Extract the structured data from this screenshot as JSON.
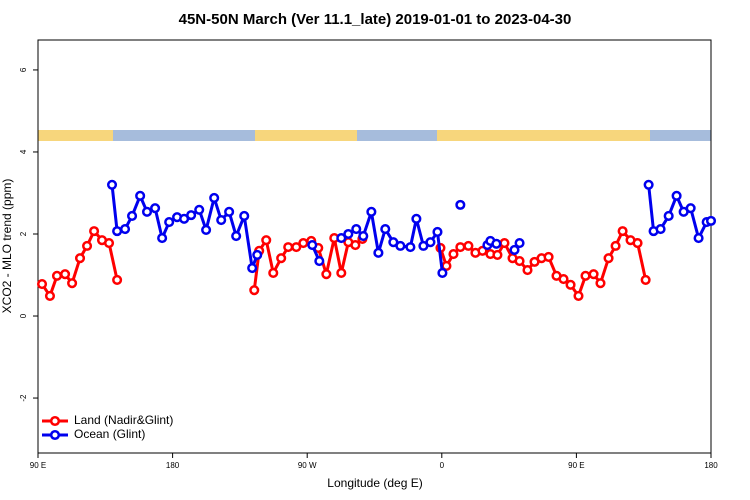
{
  "chart_data": {
    "type": "line",
    "title": "45N-50N March (Ver 11.1_late)   2019-01-01 to 2023-04-30",
    "x_label": "Longitude (deg E)",
    "y_label": "XCO2 - MLO trend (ppm)",
    "xlim": [
      90,
      540
    ],
    "ylim": [
      -3.34,
      6.73
    ],
    "xticks": [
      {
        "value": 90,
        "label": "90 E"
      },
      180,
      {
        "value": 270,
        "label": "90 W"
      },
      {
        "value": 360,
        "label": "0"
      },
      {
        "value": 450,
        "label": "90 E"
      },
      {
        "value": 540,
        "label": "180"
      }
    ],
    "yticks": [
      -2,
      0,
      2,
      4,
      6
    ],
    "legend": "bottomleft",
    "series": [
      {
        "name": "Land (Nadir&Glint)",
        "color": "#ff0000",
        "x": [
          92.7,
          98.0,
          102.7,
          108.1,
          112.8,
          118.1,
          122.8,
          127.5,
          132.8,
          137.5,
          142.9,
          null,
          234.6,
          237.9,
          242.6,
          247.3,
          252.6,
          257.3,
          262.7,
          267.4,
          272.7,
          277.4,
          282.8,
          288.1,
          292.8,
          297.5,
          302.2,
          306.9,
          null,
          359.1,
          363.1,
          367.8,
          372.4,
          377.8,
          382.5,
          387.2,
          392.5,
          397.2,
          401.9,
          407.3,
          412.0,
          417.3,
          422.0,
          426.7,
          431.4,
          436.7,
          441.4,
          446.1,
          451.4,
          456.1,
          461.5,
          466.1,
          471.5,
          476.2,
          480.9,
          486.2,
          490.9,
          496.3
        ],
        "values": [
          0.78,
          0.49,
          0.98,
          1.02,
          0.8,
          1.41,
          1.71,
          2.07,
          1.85,
          1.78,
          0.88,
          null,
          0.63,
          1.59,
          1.85,
          1.05,
          1.41,
          1.68,
          1.68,
          1.78,
          1.83,
          1.66,
          1.02,
          1.9,
          1.05,
          1.8,
          1.73,
          1.88,
          null,
          1.66,
          1.22,
          1.51,
          1.68,
          1.71,
          1.54,
          1.59,
          1.51,
          1.49,
          1.78,
          1.41,
          1.34,
          1.12,
          1.32,
          1.41,
          1.44,
          0.98,
          0.9,
          0.76,
          0.49,
          0.98,
          1.02,
          0.8,
          1.41,
          1.71,
          2.07,
          1.85,
          1.78,
          0.88
        ]
      },
      {
        "name": "Ocean (Glint)",
        "color": "#0000ee",
        "x": [
          139.5,
          142.9,
          148.2,
          152.9,
          158.3,
          162.9,
          168.3,
          173.0,
          177.7,
          183.0,
          187.7,
          192.4,
          197.8,
          202.4,
          207.8,
          212.5,
          217.8,
          222.5,
          227.9,
          233.2,
          236.6,
          null,
          273.4,
          278.1,
          null,
          292.8,
          297.5,
          302.8,
          307.5,
          312.9,
          317.6,
          322.2,
          327.6,
          332.3,
          339.0,
          343.0,
          347.7,
          352.4,
          357.1,
          360.4,
          null,
          372.4,
          null,
          390.5,
          392.5,
          396.5,
          null,
          408.6,
          412.0,
          null,
          498.3,
          501.6,
          506.3,
          511.7,
          517.0,
          521.7,
          526.4,
          531.7,
          537.1,
          540
        ],
        "values": [
          3.2,
          2.07,
          2.12,
          2.44,
          2.93,
          2.54,
          2.63,
          1.9,
          2.29,
          2.41,
          2.37,
          2.46,
          2.59,
          2.1,
          2.88,
          2.34,
          2.54,
          1.95,
          2.44,
          1.17,
          1.49,
          null,
          1.73,
          1.34,
          null,
          1.9,
          2.0,
          2.12,
          1.95,
          2.54,
          1.54,
          2.12,
          1.8,
          1.71,
          1.68,
          2.37,
          1.71,
          1.8,
          2.05,
          1.05,
          null,
          2.71,
          null,
          1.73,
          1.83,
          1.76,
          null,
          1.61,
          1.78,
          null,
          3.2,
          2.07,
          2.12,
          2.44,
          2.93,
          2.54,
          2.63,
          1.9,
          2.29,
          2.32
        ]
      }
    ]
  }
}
